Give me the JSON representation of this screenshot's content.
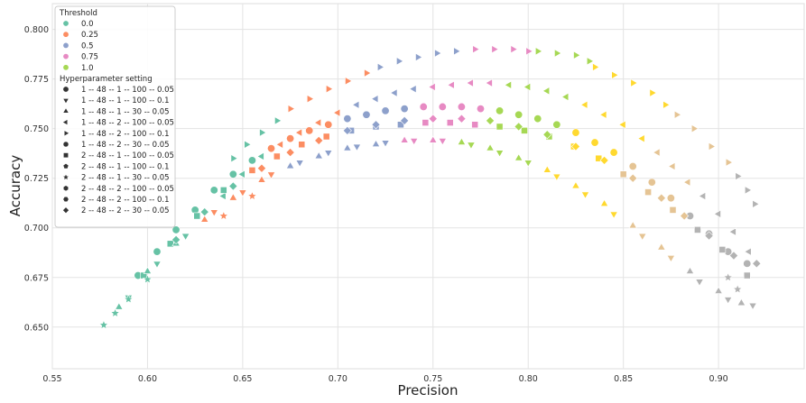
{
  "chart_data": {
    "type": "scatter",
    "title": "",
    "xlabel": "Precision",
    "ylabel": "Accuracy",
    "xlim": [
      0.55,
      0.945
    ],
    "ylim": [
      0.629,
      0.813
    ],
    "x_ticks": [
      0.55,
      0.6,
      0.65,
      0.7,
      0.75,
      0.8,
      0.85,
      0.9
    ],
    "x_tick_labels": [
      "0.55",
      "0.60",
      "0.65",
      "0.70",
      "0.75",
      "0.80",
      "0.85",
      "0.90"
    ],
    "y_ticks": [
      0.65,
      0.675,
      0.7,
      0.725,
      0.75,
      0.775,
      0.8
    ],
    "y_tick_labels": [
      "0.650",
      "0.675",
      "0.700",
      "0.725",
      "0.750",
      "0.775",
      "0.800"
    ],
    "grid": true,
    "legend_position": "top-left",
    "legend": {
      "hue_title": "Threshold",
      "hue_entries": [
        {
          "label": "0.0",
          "color": "#66c2a5"
        },
        {
          "label": "0.25",
          "color": "#fc8d62"
        },
        {
          "label": "0.5",
          "color": "#8da0cb"
        },
        {
          "label": "0.75",
          "color": "#e78ac3"
        },
        {
          "label": "1.0",
          "color": "#a6d854"
        }
      ],
      "style_title": "Hyperparameter setting",
      "style_entries": [
        {
          "label": "1 -- 48 -- 1 -- 100 -- 0.05",
          "marker": "circle"
        },
        {
          "label": "1 -- 48 -- 1 -- 100 -- 0.1",
          "marker": "triangle-down"
        },
        {
          "label": "1 -- 48 -- 1 -- 30 -- 0.05",
          "marker": "triangle-up"
        },
        {
          "label": "1 -- 48 -- 2 -- 100 -- 0.05",
          "marker": "triangle-left"
        },
        {
          "label": "1 -- 48 -- 2 -- 100 -- 0.1",
          "marker": "triangle-right"
        },
        {
          "label": "1 -- 48 -- 2 -- 30 -- 0.05",
          "marker": "octagon"
        },
        {
          "label": "2 -- 48 -- 1 -- 100 -- 0.05",
          "marker": "square"
        },
        {
          "label": "2 -- 48 -- 1 -- 100 -- 0.1",
          "marker": "pentagon"
        },
        {
          "label": "2 -- 48 -- 1 -- 30 -- 0.05",
          "marker": "star"
        },
        {
          "label": "2 -- 48 -- 2 -- 100 -- 0.05",
          "marker": "hexagon"
        },
        {
          "label": "2 -- 48 -- 2 -- 100 -- 0.1",
          "marker": "hexagon2"
        },
        {
          "label": "2 -- 48 -- 2 -- 30 -- 0.05",
          "marker": "diamond"
        }
      ]
    },
    "series": [
      {
        "name": "1 -- 48 -- 2 -- 100 -- 0.1",
        "marker": "triangle-right",
        "segments": [
          {
            "color": "#66c2a5",
            "x": [
              0.645,
              0.652,
              0.66,
              0.668
            ],
            "y": [
              0.735,
              0.742,
              0.748,
              0.754
            ]
          },
          {
            "color": "#fc8d62",
            "x": [
              0.675,
              0.685,
              0.695,
              0.705,
              0.715
            ],
            "y": [
              0.76,
              0.765,
              0.77,
              0.774,
              0.778
            ]
          },
          {
            "color": "#8da0cb",
            "x": [
              0.722,
              0.732,
              0.742,
              0.752,
              0.762
            ],
            "y": [
              0.781,
              0.784,
              0.786,
              0.788,
              0.789
            ]
          },
          {
            "color": "#e78ac3",
            "x": [
              0.772,
              0.782,
              0.792,
              0.8
            ],
            "y": [
              0.79,
              0.79,
              0.79,
              0.789
            ]
          },
          {
            "color": "#a6d854",
            "x": [
              0.805,
              0.815,
              0.825,
              0.832
            ],
            "y": [
              0.789,
              0.788,
              0.787,
              0.784
            ]
          },
          {
            "color": "#ffd92f",
            "x": [
              0.835,
              0.845,
              0.855,
              0.865,
              0.872
            ],
            "y": [
              0.781,
              0.777,
              0.773,
              0.768,
              0.762
            ]
          },
          {
            "color": "#e5c494",
            "x": [
              0.878,
              0.887,
              0.896,
              0.905
            ],
            "y": [
              0.757,
              0.75,
              0.741,
              0.733
            ]
          },
          {
            "color": "#b3b3b3",
            "x": [
              0.91,
              0.915,
              0.919
            ],
            "y": [
              0.726,
              0.719,
              0.712
            ]
          }
        ]
      },
      {
        "name": "1 -- 48 -- 2 -- 100 -- 0.05",
        "marker": "triangle-left",
        "segments": [
          {
            "color": "#66c2a5",
            "x": [
              0.64,
              0.65,
              0.66
            ],
            "y": [
              0.716,
              0.727,
              0.736
            ]
          },
          {
            "color": "#fc8d62",
            "x": [
              0.67,
              0.68,
              0.69,
              0.7
            ],
            "y": [
              0.742,
              0.748,
              0.753,
              0.758
            ]
          },
          {
            "color": "#8da0cb",
            "x": [
              0.71,
              0.72,
              0.73,
              0.74
            ],
            "y": [
              0.762,
              0.765,
              0.768,
              0.77
            ]
          },
          {
            "color": "#e78ac3",
            "x": [
              0.75,
              0.76,
              0.77,
              0.78
            ],
            "y": [
              0.771,
              0.772,
              0.773,
              0.773
            ]
          },
          {
            "color": "#a6d854",
            "x": [
              0.79,
              0.8,
              0.81,
              0.82
            ],
            "y": [
              0.772,
              0.771,
              0.769,
              0.766
            ]
          },
          {
            "color": "#ffd92f",
            "x": [
              0.83,
              0.84,
              0.85,
              0.86
            ],
            "y": [
              0.762,
              0.757,
              0.752,
              0.745
            ]
          },
          {
            "color": "#e5c494",
            "x": [
              0.868,
              0.876,
              0.884
            ],
            "y": [
              0.738,
              0.731,
              0.723
            ]
          },
          {
            "color": "#b3b3b3",
            "x": [
              0.892,
              0.9,
              0.908,
              0.916
            ],
            "y": [
              0.716,
              0.707,
              0.698,
              0.688
            ]
          }
        ]
      },
      {
        "name": "1 -- 48 -- 1 -- 100 -- 0.05",
        "marker": "circle",
        "segments": [
          {
            "color": "#66c2a5",
            "x": [
              0.595,
              0.605,
              0.615,
              0.625,
              0.635,
              0.645,
              0.655
            ],
            "y": [
              0.676,
              0.688,
              0.699,
              0.709,
              0.719,
              0.727,
              0.734
            ]
          },
          {
            "color": "#fc8d62",
            "x": [
              0.665,
              0.675,
              0.685,
              0.695
            ],
            "y": [
              0.74,
              0.745,
              0.749,
              0.752
            ]
          },
          {
            "color": "#8da0cb",
            "x": [
              0.705,
              0.715,
              0.725,
              0.735
            ],
            "y": [
              0.755,
              0.757,
              0.759,
              0.76
            ]
          },
          {
            "color": "#e78ac3",
            "x": [
              0.745,
              0.755,
              0.765,
              0.775
            ],
            "y": [
              0.761,
              0.761,
              0.761,
              0.76
            ]
          },
          {
            "color": "#a6d854",
            "x": [
              0.785,
              0.795,
              0.805,
              0.815
            ],
            "y": [
              0.759,
              0.757,
              0.755,
              0.752
            ]
          },
          {
            "color": "#ffd92f",
            "x": [
              0.825,
              0.835,
              0.845
            ],
            "y": [
              0.748,
              0.743,
              0.738
            ]
          },
          {
            "color": "#e5c494",
            "x": [
              0.855,
              0.865,
              0.875
            ],
            "y": [
              0.731,
              0.723,
              0.715
            ]
          },
          {
            "color": "#b3b3b3",
            "x": [
              0.885,
              0.895,
              0.905,
              0.915
            ],
            "y": [
              0.706,
              0.697,
              0.688,
              0.682
            ]
          }
        ]
      },
      {
        "name": "2 -- 48 -- 1 -- 100 -- 0.05",
        "marker": "square",
        "segments": [
          {
            "color": "#66c2a5",
            "x": [
              0.598,
              0.612,
              0.626,
              0.64
            ],
            "y": [
              0.676,
              0.692,
              0.706,
              0.719
            ]
          },
          {
            "color": "#fc8d62",
            "x": [
              0.655,
              0.668,
              0.681,
              0.694
            ],
            "y": [
              0.729,
              0.736,
              0.742,
              0.746
            ]
          },
          {
            "color": "#8da0cb",
            "x": [
              0.707,
              0.72,
              0.733
            ],
            "y": [
              0.749,
              0.751,
              0.752
            ]
          },
          {
            "color": "#e78ac3",
            "x": [
              0.746,
              0.759,
              0.772
            ],
            "y": [
              0.753,
              0.753,
              0.752
            ]
          },
          {
            "color": "#a6d854",
            "x": [
              0.785,
              0.798,
              0.811
            ],
            "y": [
              0.751,
              0.749,
              0.746
            ]
          },
          {
            "color": "#ffd92f",
            "x": [
              0.824,
              0.837
            ],
            "y": [
              0.741,
              0.735
            ]
          },
          {
            "color": "#e5c494",
            "x": [
              0.85,
              0.863,
              0.876
            ],
            "y": [
              0.727,
              0.718,
              0.709
            ]
          },
          {
            "color": "#b3b3b3",
            "x": [
              0.889,
              0.902,
              0.915
            ],
            "y": [
              0.699,
              0.689,
              0.676
            ]
          }
        ]
      },
      {
        "name": "1 -- 48 -- 1 -- 30 -- 0.05",
        "marker": "triangle-up",
        "segments": [
          {
            "color": "#66c2a5",
            "x": [
              0.585,
              0.6,
              0.615
            ],
            "y": [
              0.66,
              0.678,
              0.692
            ]
          },
          {
            "color": "#fc8d62",
            "x": [
              0.63,
              0.645,
              0.66
            ],
            "y": [
              0.704,
              0.715,
              0.724
            ]
          },
          {
            "color": "#8da0cb",
            "x": [
              0.675,
              0.69,
              0.705,
              0.72
            ],
            "y": [
              0.731,
              0.736,
              0.74,
              0.742
            ]
          },
          {
            "color": "#e78ac3",
            "x": [
              0.735,
              0.75
            ],
            "y": [
              0.744,
              0.744
            ]
          },
          {
            "color": "#a6d854",
            "x": [
              0.765,
              0.78,
              0.795
            ],
            "y": [
              0.743,
              0.74,
              0.735
            ]
          },
          {
            "color": "#ffd92f",
            "x": [
              0.81,
              0.825,
              0.84
            ],
            "y": [
              0.729,
              0.721,
              0.712
            ]
          },
          {
            "color": "#e5c494",
            "x": [
              0.855,
              0.87
            ],
            "y": [
              0.701,
              0.69
            ]
          },
          {
            "color": "#b3b3b3",
            "x": [
              0.885,
              0.9,
              0.912
            ],
            "y": [
              0.678,
              0.668,
              0.662
            ]
          }
        ]
      },
      {
        "name": "1 -- 48 -- 1 -- 100 -- 0.1",
        "marker": "triangle-down",
        "segments": [
          {
            "color": "#66c2a5",
            "x": [
              0.59,
              0.605,
              0.62
            ],
            "y": [
              0.665,
              0.682,
              0.696
            ]
          },
          {
            "color": "#fc8d62",
            "x": [
              0.635,
              0.65,
              0.665
            ],
            "y": [
              0.708,
              0.718,
              0.727
            ]
          },
          {
            "color": "#8da0cb",
            "x": [
              0.68,
              0.695,
              0.71,
              0.725
            ],
            "y": [
              0.733,
              0.738,
              0.741,
              0.743
            ]
          },
          {
            "color": "#e78ac3",
            "x": [
              0.74,
              0.755
            ],
            "y": [
              0.744,
              0.744
            ]
          },
          {
            "color": "#a6d854",
            "x": [
              0.77,
              0.785,
              0.8
            ],
            "y": [
              0.742,
              0.738,
              0.733
            ]
          },
          {
            "color": "#ffd92f",
            "x": [
              0.815,
              0.83,
              0.845
            ],
            "y": [
              0.726,
              0.717,
              0.707
            ]
          },
          {
            "color": "#e5c494",
            "x": [
              0.86,
              0.875
            ],
            "y": [
              0.696,
              0.685
            ]
          },
          {
            "color": "#b3b3b3",
            "x": [
              0.89,
              0.905,
              0.918
            ],
            "y": [
              0.673,
              0.664,
              0.661
            ]
          }
        ]
      },
      {
        "name": "2 -- 48 -- 1 -- 30 -- 0.05",
        "marker": "star",
        "segments": [
          {
            "color": "#66c2a5",
            "x": [
              0.577,
              0.583,
              0.59,
              0.6
            ],
            "y": [
              0.651,
              0.657,
              0.664,
              0.674
            ]
          },
          {
            "color": "#fc8d62",
            "x": [
              0.64,
              0.655
            ],
            "y": [
              0.706,
              0.716
            ]
          },
          {
            "color": "#b3b3b3",
            "x": [
              0.905,
              0.91
            ],
            "y": [
              0.675,
              0.669
            ]
          }
        ]
      },
      {
        "name": "2 -- 48 -- 2 -- 30 -- 0.05",
        "marker": "diamond",
        "segments": [
          {
            "color": "#66c2a5",
            "x": [
              0.615,
              0.63,
              0.645
            ],
            "y": [
              0.694,
              0.708,
              0.721
            ]
          },
          {
            "color": "#fc8d62",
            "x": [
              0.66,
              0.675,
              0.69
            ],
            "y": [
              0.73,
              0.738,
              0.744
            ]
          },
          {
            "color": "#8da0cb",
            "x": [
              0.705,
              0.72,
              0.735
            ],
            "y": [
              0.749,
              0.752,
              0.754
            ]
          },
          {
            "color": "#e78ac3",
            "x": [
              0.75,
              0.765
            ],
            "y": [
              0.755,
              0.755
            ]
          },
          {
            "color": "#a6d854",
            "x": [
              0.78,
              0.795,
              0.81
            ],
            "y": [
              0.754,
              0.751,
              0.747
            ]
          },
          {
            "color": "#ffd92f",
            "x": [
              0.825,
              0.84
            ],
            "y": [
              0.741,
              0.734
            ]
          },
          {
            "color": "#e5c494",
            "x": [
              0.855,
              0.87,
              0.882
            ],
            "y": [
              0.725,
              0.715,
              0.706
            ]
          },
          {
            "color": "#b3b3b3",
            "x": [
              0.895,
              0.908,
              0.92
            ],
            "y": [
              0.696,
              0.686,
              0.682
            ]
          }
        ]
      }
    ]
  }
}
